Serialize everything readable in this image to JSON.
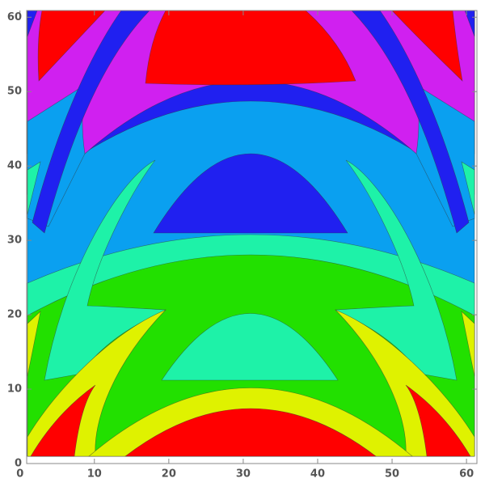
{
  "chart_data": {
    "type": "contour",
    "xlim": [
      0.9,
      61.4
    ],
    "ylim": [
      0,
      60.9
    ],
    "xticks": [
      0,
      10,
      20,
      30,
      40,
      50,
      60
    ],
    "yticks": [
      0,
      10,
      20,
      30,
      40,
      50,
      60
    ],
    "colors": [
      "#ff0000",
      "#dff200",
      "#22e000",
      "#1ef2a8",
      "#0aa0f0",
      "#2020f0",
      "#d020f0"
    ]
  }
}
